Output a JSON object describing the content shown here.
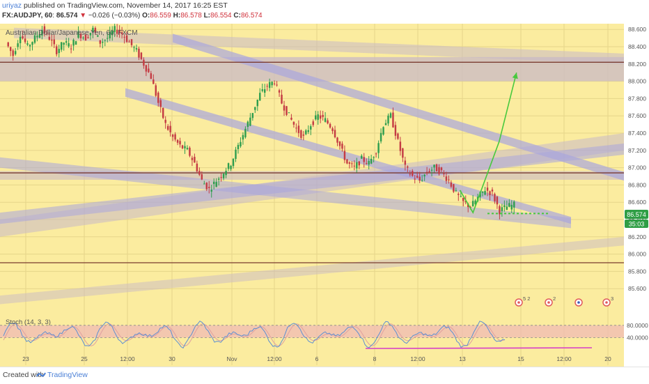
{
  "header": {
    "author": "uriyaz",
    "published_text": "published on TradingView.com, November 14, 2017 16:25 EST",
    "symbol": "FX:AUDJPY, 60",
    "last": "86.574",
    "change_arrow": "▼",
    "change": "−0.026 (−0.03%)",
    "o_label": "O:",
    "o_value": "86.559",
    "h_label": "H:",
    "h_value": "86.578",
    "l_label": "L:",
    "l_value": "86.554",
    "c_label": "C:",
    "c_value": "86.574"
  },
  "legend": {
    "instrument": "Australian Dollar/Japanese Yen, 60, FXCM"
  },
  "indicator": {
    "label": "Stoch (14, 3, 3)",
    "levels": [
      "80.0000",
      "40.0000"
    ]
  },
  "price_badge": {
    "price": "86.574",
    "countdown": "35:03"
  },
  "footer": {
    "created_with": "Created with",
    "brand": "TradingView"
  },
  "colors": {
    "background": "#fbec9f",
    "zone": "#c9b9c6",
    "channel": "#a9a6dd",
    "candle_up": "#2e9e4e",
    "candle_down": "#c43b43",
    "horizontal_line": "#7a3b2f",
    "projection": "#47c93c",
    "stoch_band": "#f0b8b6",
    "stoch_k": "#5d8fd3",
    "stoch_d": "#e0a0a0",
    "divergence": "#d63fc6",
    "badge_green": "#2f9e45"
  },
  "chart_data": {
    "type": "candlestick",
    "y_axis": {
      "side": "right",
      "range": [
        85.4,
        88.65
      ],
      "ticks": [
        "88.600",
        "88.400",
        "88.200",
        "88.000",
        "87.800",
        "87.600",
        "87.400",
        "87.200",
        "87.000",
        "86.800",
        "86.600",
        "86.400",
        "86.200",
        "86.000",
        "85.800",
        "85.600"
      ]
    },
    "x_axis": {
      "ticks": [
        "23",
        "25",
        "12:00",
        "30",
        "Nov",
        "12:00",
        "6",
        "8",
        "12:00",
        "13",
        "15",
        "12:00",
        "20"
      ]
    },
    "horizontal_lines": [
      88.22,
      86.94,
      85.9
    ],
    "price_series_path": [
      [
        0,
        88.45
      ],
      [
        1,
        88.3
      ],
      [
        2,
        88.55
      ],
      [
        3,
        88.4
      ],
      [
        4,
        88.5
      ],
      [
        5,
        88.6
      ],
      [
        6,
        88.5
      ],
      [
        7,
        88.35
      ],
      [
        8,
        88.45
      ],
      [
        9,
        88.4
      ],
      [
        10,
        88.55
      ],
      [
        11,
        88.5
      ],
      [
        12,
        88.6
      ],
      [
        13,
        88.45
      ],
      [
        14,
        88.5
      ],
      [
        15,
        88.6
      ],
      [
        16,
        88.55
      ],
      [
        17,
        88.45
      ],
      [
        18,
        88.35
      ],
      [
        19,
        88.2
      ],
      [
        20,
        88.05
      ],
      [
        21,
        87.75
      ],
      [
        22,
        87.5
      ],
      [
        23,
        87.35
      ],
      [
        24,
        87.25
      ],
      [
        25,
        87.2
      ],
      [
        26,
        87.05
      ],
      [
        27,
        86.85
      ],
      [
        28,
        86.75
      ],
      [
        29,
        86.85
      ],
      [
        30,
        86.95
      ],
      [
        31,
        87.05
      ],
      [
        32,
        87.25
      ],
      [
        33,
        87.45
      ],
      [
        34,
        87.65
      ],
      [
        35,
        87.85
      ],
      [
        36,
        87.95
      ],
      [
        37,
        88.0
      ],
      [
        38,
        87.75
      ],
      [
        39,
        87.6
      ],
      [
        40,
        87.45
      ],
      [
        41,
        87.35
      ],
      [
        42,
        87.5
      ],
      [
        43,
        87.6
      ],
      [
        44,
        87.55
      ],
      [
        45,
        87.45
      ],
      [
        46,
        87.25
      ],
      [
        47,
        87.05
      ],
      [
        48,
        87.0
      ],
      [
        49,
        87.1
      ],
      [
        50,
        87.05
      ],
      [
        51,
        87.2
      ],
      [
        52,
        87.5
      ],
      [
        53,
        87.6
      ],
      [
        54,
        87.3
      ],
      [
        55,
        87.0
      ],
      [
        56,
        86.9
      ],
      [
        57,
        86.85
      ],
      [
        58,
        86.95
      ],
      [
        59,
        87.0
      ],
      [
        60,
        86.95
      ],
      [
        61,
        86.85
      ],
      [
        62,
        86.7
      ],
      [
        63,
        86.6
      ],
      [
        64,
        86.55
      ],
      [
        65,
        86.65
      ],
      [
        66,
        86.75
      ],
      [
        67,
        86.7
      ],
      [
        68,
        86.5
      ],
      [
        69,
        86.55
      ],
      [
        70,
        86.57
      ]
    ],
    "projection_path": [
      [
        86.74,
        14.3
      ],
      [
        86.48,
        14.45
      ],
      [
        87.3,
        14.75
      ],
      [
        88.1,
        14.95
      ]
    ],
    "stochastic": {
      "k_range": [
        0,
        100
      ],
      "levels": [
        80,
        40
      ]
    },
    "event_markers": [
      "5 2",
      "2",
      "",
      "3"
    ]
  }
}
